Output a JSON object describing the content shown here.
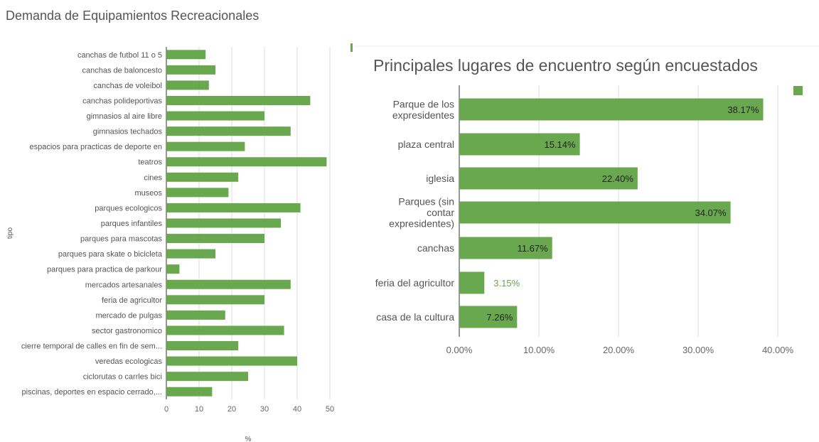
{
  "chart_data": [
    {
      "type": "bar",
      "orientation": "horizontal",
      "title": "Demanda de Equipamientos Recreacionales",
      "xlabel": "%",
      "ylabel": "tipo",
      "xlim": [
        0,
        50
      ],
      "xticks": [
        0,
        10,
        20,
        30,
        40,
        50
      ],
      "grid": true,
      "bar_color": "#6aa84f",
      "categories": [
        "canchas de futbol 11 o 5",
        "canchas de baloncesto",
        "canchas de voleibol",
        "canchas polideportivas",
        "gimnasios al aire libre",
        "gimnasios techados",
        "espacios para practicas de deporte en",
        "teatros",
        "cines",
        "museos",
        "parques ecologicos",
        "parques infantiles",
        "parques para mascotas",
        "parques para skate o bicicleta",
        "parques para practica de parkour",
        "mercados artesanales",
        "feria de agricultor",
        "mercado de pulgas",
        "sector gastronomico",
        "cierre temporal de calles en fin de sem...",
        "veredas ecologicas",
        "ciclorutas o carrles bici",
        "piscinas, deportes en espacio cerrado,..."
      ],
      "values": [
        12,
        15,
        13,
        44,
        30,
        38,
        24,
        49,
        22,
        19,
        41,
        35,
        30,
        15,
        4,
        38,
        30,
        18,
        36,
        22,
        40,
        25,
        14
      ]
    },
    {
      "type": "bar",
      "orientation": "horizontal",
      "title": "Principales lugares de encuentro según encuestados",
      "xlim": [
        0,
        40
      ],
      "xticks": [
        "0.00%",
        "10.00%",
        "20.00%",
        "30.00%",
        "40.00%"
      ],
      "grid": true,
      "legend": "top-right",
      "bar_color": "#6aa84f",
      "categories": [
        [
          "Parque de los",
          "expresidentes"
        ],
        [
          "plaza central"
        ],
        [
          "iglesia"
        ],
        [
          "Parques (sin",
          "contar",
          "expresidentes)"
        ],
        [
          "canchas"
        ],
        [
          "feria del agricultor"
        ],
        [
          "casa de la cultura"
        ]
      ],
      "values": [
        38.17,
        15.14,
        22.4,
        34.07,
        11.67,
        3.15,
        7.26
      ],
      "data_labels": [
        "38.17%",
        "15.14%",
        "22.40%",
        "34.07%",
        "11.67%",
        "3.15%",
        "7.26%"
      ]
    }
  ]
}
